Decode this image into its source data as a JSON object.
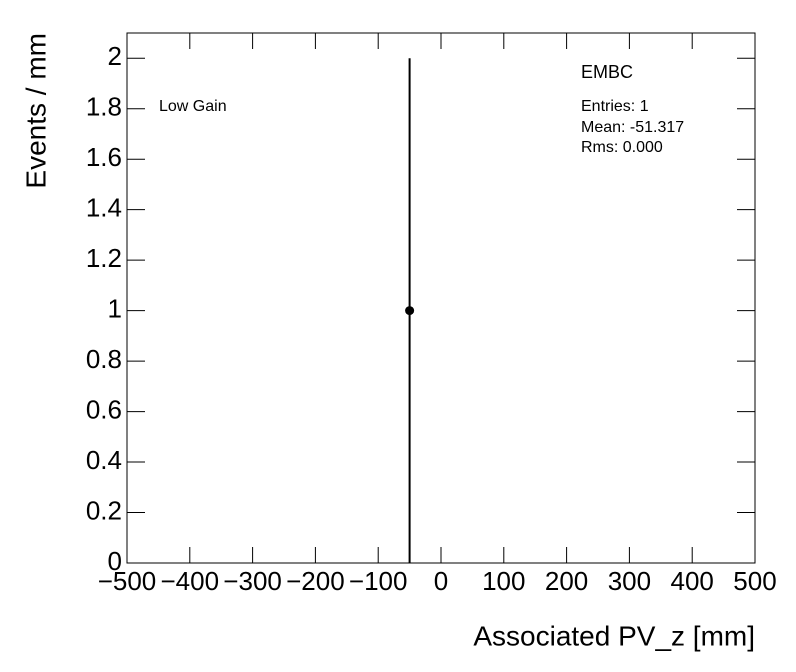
{
  "chart_data": {
    "type": "errorbar",
    "x_label": "Associated PV_z [mm]",
    "y_label": "Events / mm",
    "annotations": [
      "Low Gain"
    ],
    "stats": {
      "title": "EMBC",
      "lines": [
        "Entries: 1",
        "Mean: -51.317",
        "Rms: 0.000"
      ]
    },
    "series": [
      {
        "color": "#000000",
        "x": [
          -50
        ],
        "values": [
          1
        ],
        "errors": [
          1
        ]
      }
    ],
    "xlim": [
      -500,
      500
    ],
    "xticks": [
      {
        "value": -500,
        "label": "−500"
      },
      {
        "value": -400,
        "label": "−400"
      },
      {
        "value": -300,
        "label": "−300"
      },
      {
        "value": -200,
        "label": "−200"
      },
      {
        "value": -100,
        "label": "−100"
      },
      0,
      100,
      200,
      300,
      400,
      500
    ],
    "ylim": [
      0,
      2.1
    ],
    "yticks": [
      0,
      0.2,
      0.4,
      0.6,
      0.8,
      1,
      1.2,
      1.4,
      1.6,
      1.8,
      2
    ]
  }
}
